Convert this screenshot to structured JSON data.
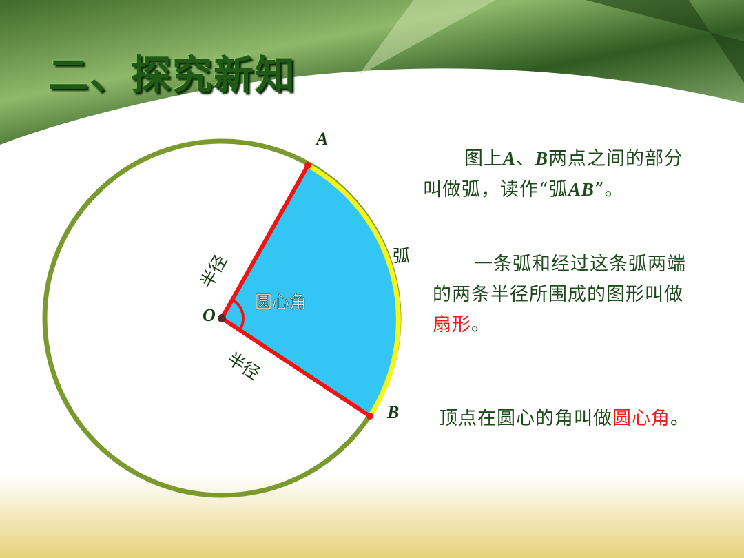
{
  "title": "二、探究新知",
  "colors": {
    "sector_fill": "#33c6f5",
    "radius_line": "#f01515",
    "arc": "#f5f51a",
    "circle": "#7a9a2e",
    "text": "#1d4a1a",
    "highlight": "#ee1c1c"
  },
  "diagram": {
    "point_a": "A",
    "point_b": "B",
    "point_o": "O",
    "radius_label_1": "半径",
    "radius_label_2": "半径",
    "arc_label": "弧",
    "central_angle_label": "圆心角"
  },
  "paragraphs": {
    "arc": {
      "line1_pre": "图上",
      "a": "A",
      "sep": "、",
      "b": "B",
      "line1_post": "两点之间的部分",
      "line2_pre": "叫做弧，读作“弧",
      "ab": "AB",
      "line2_post": "”。"
    },
    "sector": {
      "line1": "一条弧和经过这条弧两端",
      "line2": "的两条半径所围成的图形叫做",
      "term": "扇形",
      "end": "。"
    },
    "central_angle": {
      "text": "顶点在圆心的角叫做",
      "term": "圆心角",
      "end": "。"
    }
  }
}
